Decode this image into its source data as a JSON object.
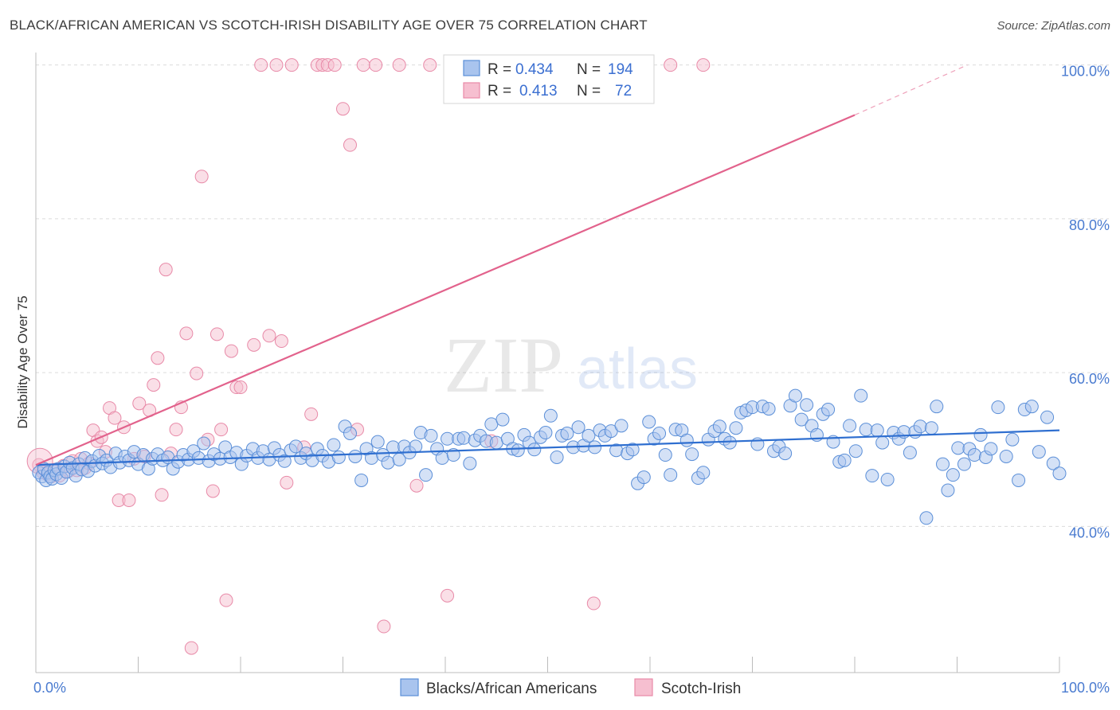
{
  "title": "BLACK/AFRICAN AMERICAN VS SCOTCH-IRISH DISABILITY AGE OVER 75 CORRELATION CHART",
  "source": "Source: ZipAtlas.com",
  "watermark": {
    "zip": "ZIP",
    "atlas": "atlas"
  },
  "colors": {
    "blue_fill": "#a9c4ee",
    "blue_stroke": "#5b8fd8",
    "blue_line": "#2f6fd0",
    "pink_fill": "#f6bfd0",
    "pink_stroke": "#e88aa8",
    "pink_line": "#e2628c",
    "tick_text": "#4a7bd0",
    "grid": "#dcdcdc"
  },
  "legend": {
    "rows": [
      {
        "r_label": "R = ",
        "r_value": "0.434",
        "n_label": "N = ",
        "n_value": "194"
      },
      {
        "r_label": "R = ",
        "r_value": "0.413",
        "n_label": "N = ",
        "n_value": "72"
      }
    ]
  },
  "bottom_legend": [
    "Blacks/African Americans",
    "Scotch-Irish"
  ],
  "chart_data": {
    "type": "scatter",
    "title": "BLACK/AFRICAN AMERICAN VS SCOTCH-IRISH DISABILITY AGE OVER 75 CORRELATION CHART",
    "xlabel": "",
    "ylabel": "Disability Age Over 75",
    "xlim": [
      0,
      100
    ],
    "ylim": [
      21,
      101
    ],
    "x_tick_labels": [
      "0.0%",
      "100.0%"
    ],
    "y_ticks": [
      40,
      60,
      80,
      100
    ],
    "y_tick_labels": [
      "40.0%",
      "60.0%",
      "80.0%",
      "100.0%"
    ],
    "grid": true,
    "legend_position": "top-center",
    "series": [
      {
        "name": "Blacks/African Americans",
        "r": 0.434,
        "n": 194,
        "trend": {
          "x": [
            0,
            100
          ],
          "y": [
            48.0,
            52.5
          ]
        },
        "points": [
          [
            0.3,
            47
          ],
          [
            0.6,
            46.5
          ],
          [
            0.8,
            47.5
          ],
          [
            1.0,
            46
          ],
          [
            1.2,
            47
          ],
          [
            1.4,
            46.5
          ],
          [
            1.6,
            46.2
          ],
          [
            1.8,
            47.3
          ],
          [
            2.0,
            46.8
          ],
          [
            2.2,
            47.5
          ],
          [
            2.5,
            46.3
          ],
          [
            2.8,
            47.8
          ],
          [
            3.0,
            47.1
          ],
          [
            3.3,
            48.3
          ],
          [
            3.6,
            47.6
          ],
          [
            3.9,
            46.6
          ],
          [
            4.2,
            48.1
          ],
          [
            4.5,
            47.4
          ],
          [
            4.8,
            48.9
          ],
          [
            5.1,
            47.2
          ],
          [
            5.5,
            48.5
          ],
          [
            5.8,
            47.9
          ],
          [
            6.2,
            49.2
          ],
          [
            6.5,
            48.2
          ],
          [
            6.9,
            48.6
          ],
          [
            7.3,
            47.7
          ],
          [
            7.8,
            49.5
          ],
          [
            8.2,
            48.3
          ],
          [
            8.7,
            49.1
          ],
          [
            9.1,
            48.6
          ],
          [
            9.6,
            49.7
          ],
          [
            10.0,
            48.1
          ],
          [
            10.5,
            49.3
          ],
          [
            11.0,
            47.5
          ],
          [
            11.4,
            48.8
          ],
          [
            11.9,
            49.4
          ],
          [
            12.4,
            48.6
          ],
          [
            12.9,
            49.0
          ],
          [
            13.4,
            47.5
          ],
          [
            13.9,
            48.4
          ],
          [
            14.4,
            49.3
          ],
          [
            14.9,
            48.7
          ],
          [
            15.4,
            49.8
          ],
          [
            15.9,
            48.9
          ],
          [
            16.4,
            50.8
          ],
          [
            16.9,
            48.5
          ],
          [
            17.4,
            49.4
          ],
          [
            18.0,
            48.8
          ],
          [
            18.5,
            50.3
          ],
          [
            19.0,
            49.0
          ],
          [
            19.6,
            49.6
          ],
          [
            20.1,
            48.1
          ],
          [
            20.6,
            49.2
          ],
          [
            21.2,
            50.1
          ],
          [
            21.7,
            48.9
          ],
          [
            22.2,
            49.8
          ],
          [
            22.8,
            48.7
          ],
          [
            23.3,
            50.2
          ],
          [
            23.8,
            49.3
          ],
          [
            24.3,
            48.5
          ],
          [
            24.9,
            49.9
          ],
          [
            25.4,
            50.4
          ],
          [
            25.9,
            48.9
          ],
          [
            26.4,
            49.5
          ],
          [
            27.0,
            48.6
          ],
          [
            27.5,
            50.1
          ],
          [
            28.0,
            49.2
          ],
          [
            28.6,
            48.4
          ],
          [
            29.1,
            50.6
          ],
          [
            29.6,
            49.0
          ],
          [
            30.2,
            53.0
          ],
          [
            30.7,
            52.1
          ],
          [
            31.2,
            49.1
          ],
          [
            31.8,
            46.0
          ],
          [
            32.3,
            50.1
          ],
          [
            32.8,
            48.9
          ],
          [
            33.4,
            51.0
          ],
          [
            33.9,
            49.3
          ],
          [
            34.4,
            48.3
          ],
          [
            34.9,
            50.3
          ],
          [
            35.5,
            48.7
          ],
          [
            36.0,
            50.4
          ],
          [
            36.5,
            49.6
          ],
          [
            37.1,
            50.4
          ],
          [
            37.6,
            52.2
          ],
          [
            38.1,
            46.7
          ],
          [
            38.6,
            51.8
          ],
          [
            39.2,
            50.1
          ],
          [
            39.7,
            48.9
          ],
          [
            40.2,
            51.4
          ],
          [
            40.8,
            49.3
          ],
          [
            41.3,
            51.4
          ],
          [
            41.8,
            51.5
          ],
          [
            42.4,
            48.2
          ],
          [
            42.9,
            51.2
          ],
          [
            43.4,
            51.8
          ],
          [
            44.0,
            51.1
          ],
          [
            44.5,
            53.3
          ],
          [
            45.0,
            50.9
          ],
          [
            45.6,
            53.9
          ],
          [
            46.1,
            51.4
          ],
          [
            46.6,
            50.1
          ],
          [
            47.1,
            49.9
          ],
          [
            47.7,
            51.9
          ],
          [
            48.2,
            50.9
          ],
          [
            48.7,
            50.0
          ],
          [
            49.3,
            51.6
          ],
          [
            49.8,
            52.2
          ],
          [
            50.3,
            54.4
          ],
          [
            50.9,
            49.0
          ],
          [
            51.4,
            51.8
          ],
          [
            51.9,
            52.1
          ],
          [
            52.5,
            50.3
          ],
          [
            53.0,
            52.9
          ],
          [
            53.5,
            50.5
          ],
          [
            54.0,
            51.8
          ],
          [
            54.6,
            50.3
          ],
          [
            55.1,
            52.5
          ],
          [
            55.6,
            51.8
          ],
          [
            56.2,
            52.4
          ],
          [
            56.7,
            49.9
          ],
          [
            57.2,
            53.1
          ],
          [
            57.8,
            49.5
          ],
          [
            58.3,
            50.0
          ],
          [
            58.8,
            45.6
          ],
          [
            59.4,
            46.4
          ],
          [
            59.9,
            53.6
          ],
          [
            60.4,
            51.4
          ],
          [
            60.9,
            52.1
          ],
          [
            61.5,
            49.3
          ],
          [
            62.0,
            46.7
          ],
          [
            62.5,
            52.6
          ],
          [
            63.1,
            52.5
          ],
          [
            63.6,
            51.2
          ],
          [
            64.1,
            49.4
          ],
          [
            64.7,
            46.3
          ],
          [
            65.2,
            47.0
          ],
          [
            65.7,
            51.3
          ],
          [
            66.3,
            52.4
          ],
          [
            66.8,
            53.0
          ],
          [
            67.3,
            51.4
          ],
          [
            67.8,
            50.9
          ],
          [
            68.4,
            52.8
          ],
          [
            68.9,
            54.8
          ],
          [
            69.4,
            55.1
          ],
          [
            70.0,
            55.5
          ],
          [
            70.5,
            50.7
          ],
          [
            71.0,
            55.6
          ],
          [
            71.6,
            55.3
          ],
          [
            72.1,
            49.8
          ],
          [
            72.6,
            50.4
          ],
          [
            73.2,
            49.5
          ],
          [
            73.7,
            55.7
          ],
          [
            74.2,
            57.0
          ],
          [
            74.8,
            53.9
          ],
          [
            75.3,
            55.8
          ],
          [
            75.8,
            53.1
          ],
          [
            76.3,
            51.9
          ],
          [
            76.9,
            54.6
          ],
          [
            77.4,
            55.2
          ],
          [
            77.9,
            51.0
          ],
          [
            78.5,
            48.4
          ],
          [
            79.0,
            48.6
          ],
          [
            79.5,
            53.1
          ],
          [
            80.1,
            49.8
          ],
          [
            80.6,
            57.0
          ],
          [
            81.1,
            52.6
          ],
          [
            81.7,
            46.6
          ],
          [
            82.2,
            52.5
          ],
          [
            82.7,
            50.9
          ],
          [
            83.2,
            46.1
          ],
          [
            83.8,
            52.2
          ],
          [
            84.3,
            51.4
          ],
          [
            84.8,
            52.3
          ],
          [
            85.4,
            49.6
          ],
          [
            85.9,
            52.3
          ],
          [
            86.4,
            53.0
          ],
          [
            87.0,
            41.1
          ],
          [
            87.5,
            52.8
          ],
          [
            88.0,
            55.6
          ],
          [
            88.6,
            48.1
          ],
          [
            89.1,
            44.7
          ],
          [
            89.6,
            46.7
          ],
          [
            90.1,
            50.2
          ],
          [
            90.7,
            48.1
          ],
          [
            91.2,
            50.1
          ],
          [
            91.7,
            49.3
          ],
          [
            92.3,
            51.9
          ],
          [
            92.8,
            49.0
          ],
          [
            93.3,
            50.1
          ],
          [
            94.0,
            55.5
          ],
          [
            94.8,
            49.1
          ],
          [
            95.4,
            51.3
          ],
          [
            96.0,
            46.0
          ],
          [
            96.6,
            55.2
          ],
          [
            97.3,
            55.6
          ],
          [
            98.0,
            49.7
          ],
          [
            98.8,
            54.2
          ],
          [
            99.4,
            48.2
          ],
          [
            100.0,
            46.9
          ]
        ]
      },
      {
        "name": "Scotch-Irish",
        "r": 0.413,
        "n": 72,
        "trend": {
          "x": [
            0,
            80
          ],
          "y": [
            48.0,
            93.5
          ]
        },
        "trend_dashed": {
          "x": [
            80,
            91
          ],
          "y": [
            93.5,
            100
          ]
        },
        "points": [
          [
            0.3,
            48
          ],
          [
            0.7,
            47
          ],
          [
            1.1,
            46.8
          ],
          [
            1.5,
            46.5
          ],
          [
            1.9,
            47.4
          ],
          [
            2.3,
            46.6
          ],
          [
            2.7,
            47.9
          ],
          [
            3.2,
            47.2
          ],
          [
            3.6,
            48.5
          ],
          [
            4.0,
            47.3
          ],
          [
            4.4,
            48.8
          ],
          [
            4.8,
            47.6
          ],
          [
            5.2,
            48.2
          ],
          [
            5.6,
            52.5
          ],
          [
            6.0,
            51.1
          ],
          [
            6.4,
            51.6
          ],
          [
            6.8,
            49.7
          ],
          [
            7.2,
            55.4
          ],
          [
            7.7,
            54.1
          ],
          [
            8.1,
            43.4
          ],
          [
            8.6,
            52.9
          ],
          [
            9.1,
            43.4
          ],
          [
            9.6,
            48.8
          ],
          [
            10.1,
            56.0
          ],
          [
            10.6,
            49.1
          ],
          [
            11.1,
            55.1
          ],
          [
            11.5,
            58.4
          ],
          [
            11.9,
            61.9
          ],
          [
            12.3,
            44.1
          ],
          [
            12.7,
            73.4
          ],
          [
            13.2,
            49.5
          ],
          [
            13.7,
            52.6
          ],
          [
            14.2,
            55.5
          ],
          [
            14.7,
            65.1
          ],
          [
            15.2,
            24.2
          ],
          [
            15.7,
            59.9
          ],
          [
            16.2,
            85.5
          ],
          [
            16.8,
            51.3
          ],
          [
            17.3,
            44.6
          ],
          [
            17.7,
            65.0
          ],
          [
            18.1,
            52.6
          ],
          [
            18.6,
            30.4
          ],
          [
            19.1,
            62.8
          ],
          [
            19.6,
            58.1
          ],
          [
            20.0,
            58.1
          ],
          [
            21.3,
            63.6
          ],
          [
            22.0,
            100
          ],
          [
            22.8,
            64.8
          ],
          [
            23.5,
            100
          ],
          [
            24.0,
            64.1
          ],
          [
            24.5,
            45.7
          ],
          [
            25.0,
            100
          ],
          [
            26.2,
            50.3
          ],
          [
            26.9,
            54.6
          ],
          [
            27.5,
            100
          ],
          [
            28.0,
            100
          ],
          [
            28.5,
            100
          ],
          [
            29.2,
            100
          ],
          [
            30.0,
            94.3
          ],
          [
            30.7,
            89.6
          ],
          [
            31.4,
            52.6
          ],
          [
            32.0,
            100
          ],
          [
            33.2,
            100
          ],
          [
            34.0,
            27.0
          ],
          [
            35.5,
            100
          ],
          [
            37.2,
            45.3
          ],
          [
            38.5,
            100
          ],
          [
            40.2,
            31.0
          ],
          [
            44.5,
            51.1
          ],
          [
            54.5,
            30.0
          ],
          [
            62.0,
            100
          ],
          [
            65.2,
            100
          ]
        ]
      }
    ]
  }
}
